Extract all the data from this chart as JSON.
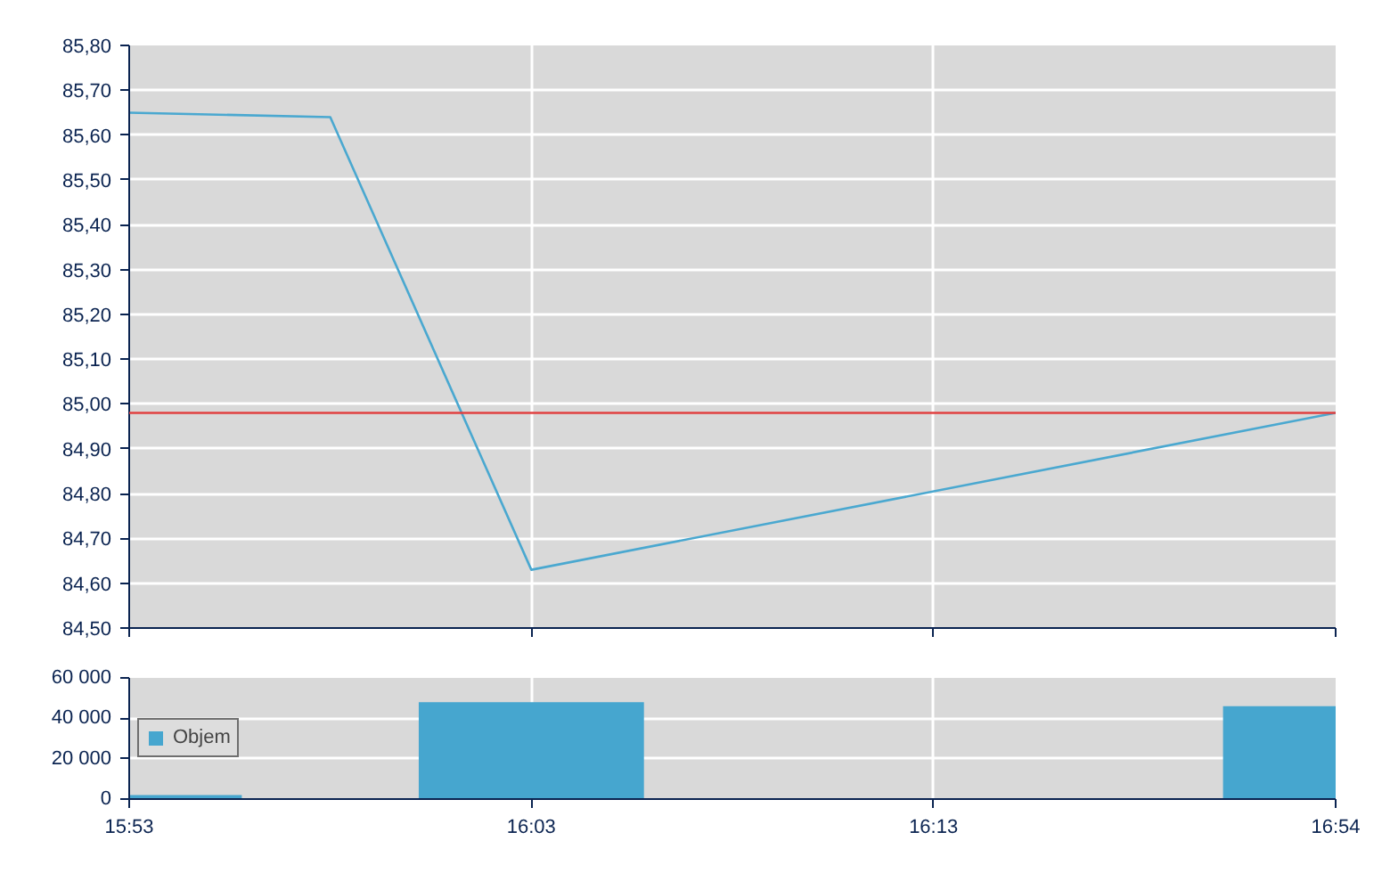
{
  "chart_data": [
    {
      "type": "line",
      "categories": [
        null,
        null,
        null,
        null,
        null,
        null,
        null
      ],
      "series": [
        {
          "color": "#4aa8d0",
          "values": [
            85.65,
            85.64,
            84.63,
            null,
            null,
            null,
            84.98
          ]
        }
      ],
      "ylim": [
        84.5,
        85.8
      ],
      "yticks": [
        {
          "value": 84.5,
          "label": "84,50"
        },
        {
          "value": 84.6,
          "label": "84,60"
        },
        {
          "value": 84.7,
          "label": "84,70"
        },
        {
          "value": 84.8,
          "label": "84,80"
        },
        {
          "value": 84.9,
          "label": "84,90"
        },
        {
          "value": 85.0,
          "label": "85,00"
        },
        {
          "value": 85.1,
          "label": "85,10"
        },
        {
          "value": 85.2,
          "label": "85,20"
        },
        {
          "value": 85.3,
          "label": "85,30"
        },
        {
          "value": 85.4,
          "label": "85,40"
        },
        {
          "value": 85.5,
          "label": "85,50"
        },
        {
          "value": 85.6,
          "label": "85,60"
        },
        {
          "value": 85.7,
          "label": "85,70"
        },
        {
          "value": 85.8,
          "label": "85,80"
        }
      ],
      "ref_lines": [
        {
          "axis": "y",
          "value": 84.98,
          "color": "#e04040"
        }
      ],
      "grid": true,
      "tick_labels": "y"
    },
    {
      "type": "bar",
      "categories": [
        "15:53",
        null,
        "16:03",
        null,
        "16:13",
        null,
        "16:54"
      ],
      "series": [
        {
          "name": "Objem",
          "color": "#46a6cf",
          "values": [
            2000,
            null,
            48000,
            null,
            null,
            null,
            46000
          ]
        }
      ],
      "ylim": [
        0,
        60000
      ],
      "yticks": [
        {
          "value": 0,
          "label": "0"
        },
        {
          "value": 20000,
          "label": "20 000"
        },
        {
          "value": 40000,
          "label": "40 000"
        },
        {
          "value": 60000,
          "label": "60 000"
        }
      ],
      "grid": true,
      "legend": "left"
    }
  ]
}
